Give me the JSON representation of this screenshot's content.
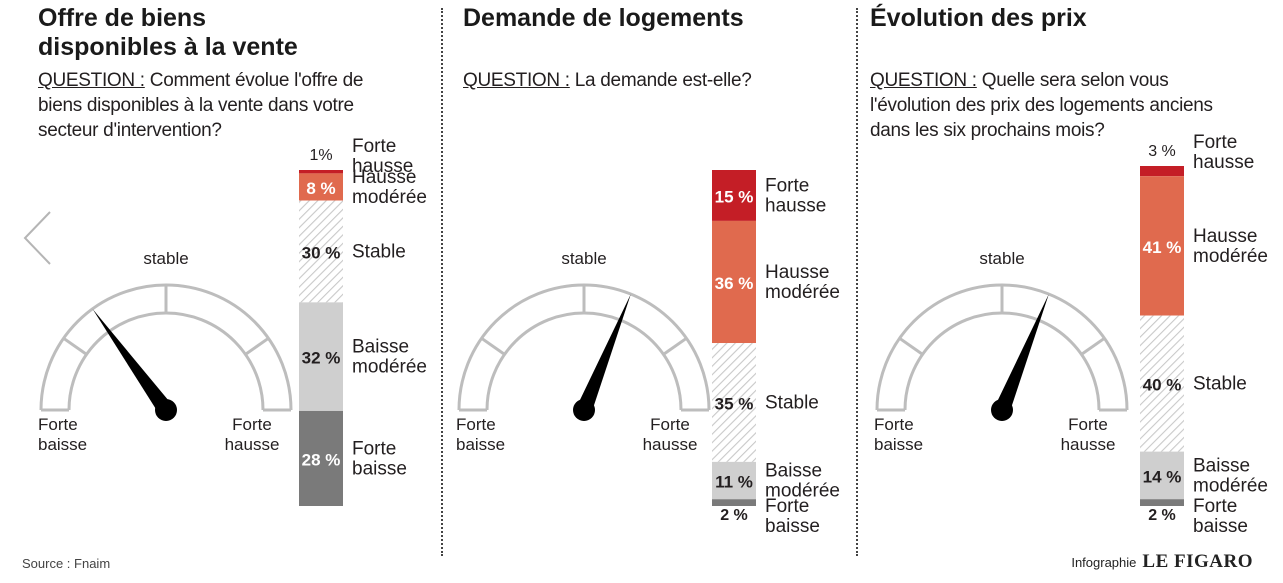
{
  "colors": {
    "forte_hausse": "#c41e26",
    "hausse_moderee": "#e06a4e",
    "stable_hatch": "#c9c9c9",
    "baisse_moderee": "#cfcfcf",
    "forte_baisse": "#7a7a7a",
    "needle": "#000000",
    "gauge_line": "#bdbdbd"
  },
  "icons": {
    "nav": "chevron-left-icon"
  },
  "footer": {
    "source": "Source : Fnaim",
    "credit_prefix": "Infographie",
    "credit_brand": "LE FIGARO"
  },
  "gauge_labels": {
    "stable": "stable",
    "left": "Forte\nbaisse",
    "right": "Forte\nhausse"
  },
  "panels": [
    {
      "title": "Offre de biens\ndisponibles à la vente",
      "question_label": "QUESTION :",
      "question_text": " Comment évolue l'offre de biens disponibles à la vente dans votre secteur d'intervention?"
    },
    {
      "title": "Demande de logements",
      "question_label": "QUESTION :",
      "question_text": " La demande est-elle?"
    },
    {
      "title": "Évolution des prix",
      "question_label": "QUESTION :",
      "question_text": " Quelle sera selon vous  l'évolution des prix des logements anciens dans les six prochains mois?"
    }
  ],
  "chart_data": [
    {
      "type": "bar",
      "stacked": true,
      "categories": [
        "Forte\nhausse",
        "Hausse\nmodérée",
        "Stable",
        "Baisse\nmodérée",
        "Forte\nbaisse"
      ],
      "values": [
        1,
        8,
        30,
        32,
        28
      ],
      "value_labels": [
        "1%",
        "8 %",
        "30 %",
        "32 %",
        "28 %"
      ],
      "needle": "between Forte baisse and stable"
    },
    {
      "type": "bar",
      "stacked": true,
      "categories": [
        "Forte\nhausse",
        "Hausse\nmodérée",
        "Stable",
        "Baisse\nmodérée",
        "Forte\nbaisse"
      ],
      "values": [
        15,
        36,
        35,
        11,
        2
      ],
      "value_labels": [
        "15 %",
        "36 %",
        "35 %",
        "11 %",
        "2 %"
      ],
      "needle": "between stable and Forte hausse"
    },
    {
      "type": "bar",
      "stacked": true,
      "categories": [
        "Forte\nhausse",
        "Hausse\nmodérée",
        "Stable",
        "Baisse\nmodérée",
        "Forte\nbaisse"
      ],
      "values": [
        3,
        41,
        40,
        14,
        2
      ],
      "value_labels": [
        "3 %",
        "41 %",
        "40 %",
        "14 %",
        "2 %"
      ],
      "needle": "between stable and Forte hausse"
    }
  ]
}
